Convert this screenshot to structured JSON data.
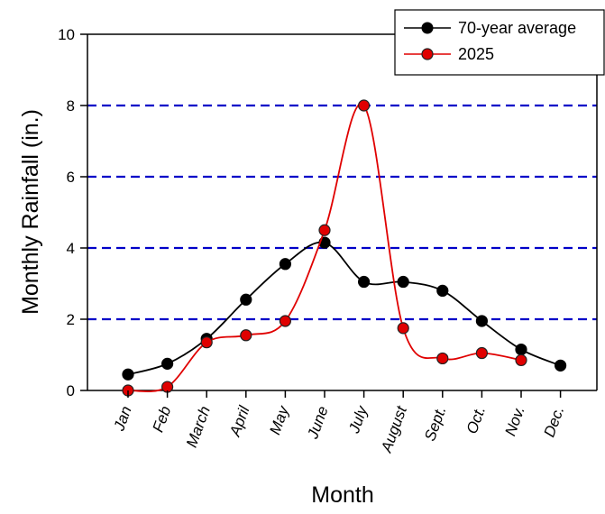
{
  "chart_data": {
    "type": "line",
    "title": "",
    "xlabel": "Month",
    "ylabel": "Monthly Rainfall (in.)",
    "categories": [
      "Jan",
      "Feb",
      "March",
      "April",
      "May",
      "June",
      "July",
      "August",
      "Sept.",
      "Oct.",
      "Nov.",
      "Dec."
    ],
    "ylim": [
      0,
      10
    ],
    "yticks": [
      "0",
      "2",
      "4",
      "6",
      "8",
      "10"
    ],
    "grid": "dashed horizontal lines at 2, 4, 6, 8",
    "legend_position": "top-right",
    "series": [
      {
        "name": "70-year average",
        "color": "#000000",
        "values": [
          0.45,
          0.75,
          1.45,
          2.55,
          3.55,
          4.15,
          3.05,
          3.05,
          2.8,
          1.95,
          1.15,
          0.7
        ]
      },
      {
        "name": "2025",
        "color": "#e00000",
        "values": [
          0.0,
          0.1,
          1.35,
          1.55,
          1.95,
          4.5,
          8.0,
          1.75,
          0.9,
          1.05,
          0.85,
          null
        ]
      }
    ],
    "gridline_color": "#0000c8"
  }
}
